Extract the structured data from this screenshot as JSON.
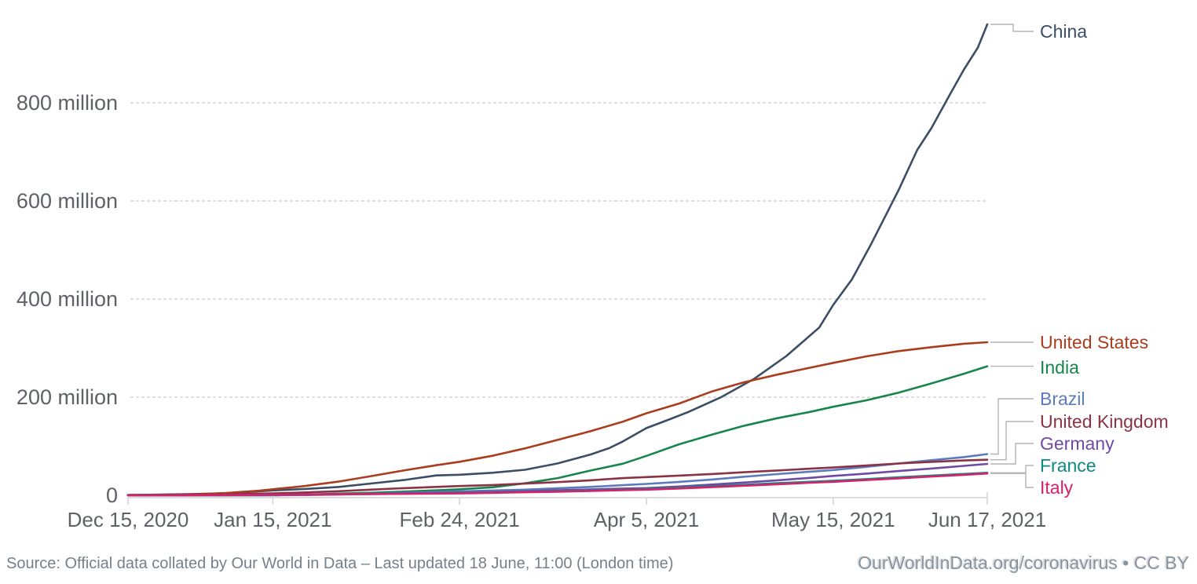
{
  "footer": {
    "source": "Source: Official data collated by Our World in Data – Last updated 18 June, 11:00 (London time)",
    "attribution": "OurWorldInData.org/coronavirus • CC BY"
  },
  "chart_data": {
    "type": "line",
    "grid": true,
    "legend_position": "right-end-labels",
    "x_axis": {
      "start_date": "Dec 15, 2020",
      "end_date": "Jun 17, 2021",
      "tick_labels": [
        "Dec 15, 2020",
        "Jan 15, 2021",
        "Feb 24, 2021",
        "Apr 5, 2021",
        "May 15, 2021",
        "Jun 17, 2021"
      ],
      "tick_days": [
        0,
        31,
        71,
        111,
        151,
        184
      ]
    },
    "y_axis": {
      "unit": "million",
      "tick_labels": [
        "0",
        "200 million",
        "400 million",
        "600 million",
        "800 million"
      ],
      "tick_values": [
        0,
        200,
        400,
        600,
        800
      ],
      "ylim": [
        0,
        985
      ]
    },
    "colors": {
      "grid": "#c9c9c9",
      "axis": "#d2d2d2",
      "leader": "#b3b3b3"
    },
    "series": [
      {
        "name": "China",
        "color": "#3C4E66",
        "days": [
          0,
          7,
          14,
          21,
          28,
          31,
          38,
          45,
          52,
          59,
          66,
          71,
          78,
          85,
          92,
          99,
          103,
          106,
          111,
          116,
          120,
          127,
          134,
          141,
          148,
          151,
          155,
          159,
          162,
          165,
          169,
          172,
          176,
          179,
          182,
          184
        ],
        "values": [
          0.5,
          1.5,
          2.5,
          4,
          8,
          10,
          13,
          17,
          24,
          31,
          40.5,
          42,
          46,
          52,
          65,
          83,
          96,
          110,
          137,
          155,
          170,
          200,
          237,
          284,
          342,
          388,
          440,
          510,
          566,
          622,
          704,
          748,
          817,
          868,
          913,
          960
        ]
      },
      {
        "name": "United States",
        "color": "#A93D1E",
        "days": [
          0,
          7,
          14,
          21,
          28,
          31,
          38,
          45,
          52,
          59,
          66,
          71,
          78,
          85,
          92,
          99,
          106,
          111,
          118,
          125,
          132,
          139,
          146,
          151,
          158,
          165,
          172,
          179,
          184
        ],
        "values": [
          0,
          0.6,
          2.1,
          4.7,
          9.3,
          12.3,
          19.1,
          27.9,
          39,
          50.6,
          61.3,
          68.3,
          80.5,
          95.7,
          113,
          130.5,
          150.3,
          167.2,
          187,
          211.6,
          230.5,
          246,
          260,
          270,
          283,
          294,
          302,
          309,
          312
        ]
      },
      {
        "name": "India",
        "color": "#18854C",
        "days": [
          0,
          31,
          34,
          38,
          45,
          52,
          59,
          66,
          71,
          78,
          85,
          92,
          99,
          106,
          111,
          118,
          125,
          132,
          139,
          146,
          151,
          158,
          165,
          172,
          179,
          184
        ],
        "values": [
          0,
          0,
          0.6,
          1.4,
          3.5,
          5.2,
          7.6,
          10.1,
          12.3,
          16.3,
          24.5,
          35,
          50.4,
          64.5,
          80.4,
          104,
          123.5,
          141.9,
          157.2,
          170,
          180.5,
          193.4,
          209.2,
          228,
          247.9,
          263
        ]
      },
      {
        "name": "Brazil",
        "color": "#5B7BBE",
        "days": [
          0,
          32,
          38,
          45,
          52,
          59,
          66,
          71,
          78,
          85,
          92,
          99,
          106,
          111,
          118,
          125,
          132,
          139,
          146,
          151,
          158,
          165,
          172,
          179,
          184
        ],
        "values": [
          0,
          0,
          0.5,
          1.8,
          3.3,
          5.1,
          6.9,
          8.1,
          9.7,
          11.6,
          14.2,
          17.1,
          20.6,
          23.2,
          27.3,
          32.2,
          38,
          43.2,
          48.2,
          51.5,
          58,
          65,
          71.5,
          78,
          84
        ]
      },
      {
        "name": "United Kingdom",
        "color": "#8B3244",
        "days": [
          0,
          7,
          14,
          21,
          28,
          31,
          38,
          45,
          52,
          59,
          66,
          71,
          78,
          85,
          92,
          99,
          106,
          111,
          118,
          125,
          132,
          139,
          146,
          151,
          158,
          165,
          172,
          179,
          184
        ],
        "values": [
          0.6,
          0.9,
          1.3,
          2,
          3.3,
          3.9,
          5.9,
          8.4,
          11.5,
          14.6,
          17.2,
          18.9,
          20.9,
          23.8,
          26.9,
          30.6,
          35,
          37.1,
          40.2,
          43.3,
          47.1,
          50.5,
          54.2,
          56.6,
          60.6,
          64.8,
          68.1,
          71,
          72.5
        ]
      },
      {
        "name": "Germany",
        "color": "#6F4AA5",
        "days": [
          0,
          12,
          14,
          21,
          28,
          31,
          38,
          45,
          52,
          59,
          66,
          71,
          78,
          85,
          92,
          99,
          106,
          111,
          118,
          125,
          132,
          139,
          146,
          151,
          158,
          165,
          172,
          179,
          184
        ],
        "values": [
          0,
          0,
          0.2,
          0.5,
          0.9,
          1.1,
          1.7,
          2.4,
          3.2,
          4.1,
          5,
          5.6,
          6.9,
          8.4,
          10.2,
          12,
          13.8,
          14.8,
          17.9,
          22,
          26.1,
          30.6,
          35.5,
          39.5,
          44.2,
          49.5,
          54.6,
          60,
          64
        ]
      },
      {
        "name": "France",
        "color": "#0E8A80",
        "days": [
          0,
          12,
          14,
          21,
          28,
          31,
          38,
          45,
          52,
          59,
          66,
          71,
          78,
          85,
          92,
          99,
          106,
          111,
          118,
          125,
          132,
          139,
          146,
          151,
          158,
          165,
          172,
          179,
          184
        ],
        "values": [
          0,
          0,
          0.05,
          0.1,
          0.4,
          0.6,
          1.1,
          1.9,
          2.7,
          3.4,
          4,
          4.6,
          5.6,
          6.7,
          8.1,
          9.7,
          11.6,
          12.9,
          15.5,
          18.5,
          21.6,
          24.6,
          27.5,
          29.6,
          33,
          36.6,
          40.1,
          43.5,
          46
        ]
      },
      {
        "name": "Italy",
        "color": "#D8216B",
        "days": [
          0,
          12,
          14,
          21,
          28,
          31,
          38,
          45,
          52,
          59,
          66,
          71,
          78,
          85,
          92,
          99,
          106,
          111,
          118,
          125,
          132,
          139,
          146,
          151,
          158,
          165,
          172,
          179,
          184
        ],
        "values": [
          0,
          0,
          0.1,
          0.4,
          0.9,
          1.1,
          1.5,
          2,
          2.5,
          3,
          3.5,
          3.9,
          5,
          6.2,
          7.3,
          8.8,
          10.6,
          11.5,
          13.9,
          16.6,
          19.6,
          22.6,
          25.6,
          27.6,
          31.1,
          34.6,
          38.2,
          41.7,
          44.5
        ]
      }
    ]
  }
}
